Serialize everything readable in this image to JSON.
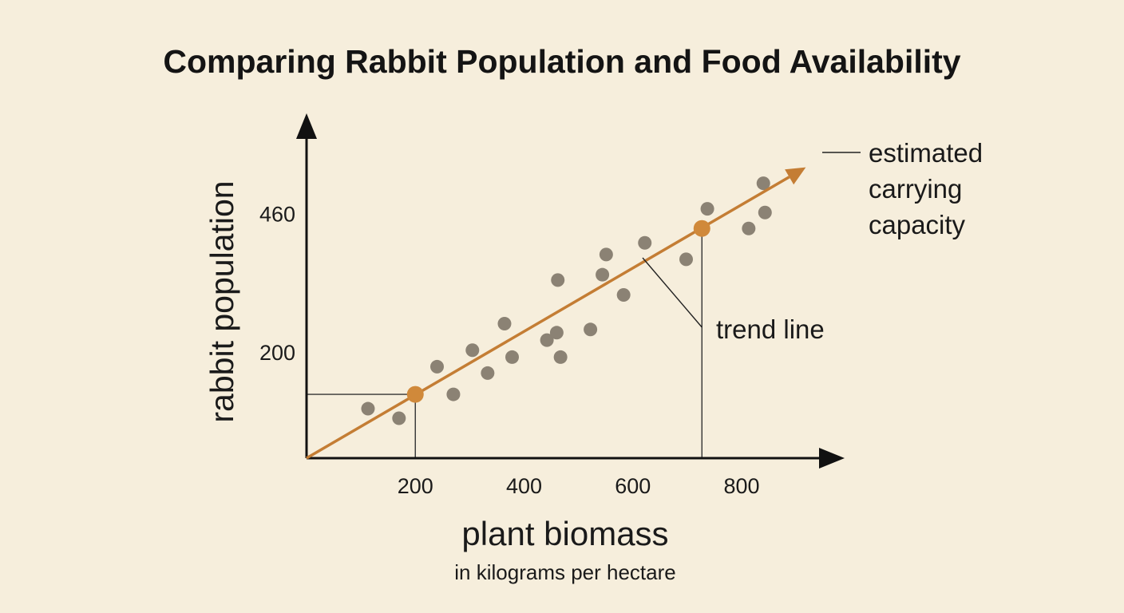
{
  "chart_data": {
    "type": "scatter",
    "title": "Comparing Rabbit Population and Food Availability",
    "ylabel": "rabbit population",
    "xlabel": "plant biomass",
    "xlabel_sub": "in kilograms per hectare",
    "x_ticks": [
      200,
      400,
      600,
      800
    ],
    "y_ticks": [
      200,
      460
    ],
    "xlim": [
      0,
      960
    ],
    "ylim": [
      0,
      620
    ],
    "grid": false,
    "colors": {
      "points": "#8b8274",
      "trend": "#c47d34",
      "highlight": "#d0893a",
      "axis": "#111111",
      "background": "#f6eedc"
    },
    "series": [
      {
        "values": [
          {
            "x": 113,
            "y": 93
          },
          {
            "x": 170,
            "y": 75
          },
          {
            "x": 240,
            "y": 172
          },
          {
            "x": 270,
            "y": 120
          },
          {
            "x": 305,
            "y": 203
          },
          {
            "x": 333,
            "y": 160
          },
          {
            "x": 364,
            "y": 253
          },
          {
            "x": 378,
            "y": 190
          },
          {
            "x": 442,
            "y": 222
          },
          {
            "x": 460,
            "y": 236
          },
          {
            "x": 467,
            "y": 190
          },
          {
            "x": 462,
            "y": 335
          },
          {
            "x": 522,
            "y": 242
          },
          {
            "x": 544,
            "y": 345
          },
          {
            "x": 551,
            "y": 383
          },
          {
            "x": 583,
            "y": 307
          },
          {
            "x": 622,
            "y": 405
          },
          {
            "x": 698,
            "y": 374
          },
          {
            "x": 737,
            "y": 469
          },
          {
            "x": 813,
            "y": 432
          },
          {
            "x": 840,
            "y": 517
          },
          {
            "x": 843,
            "y": 462
          }
        ]
      }
    ],
    "trend_line": {
      "from": {
        "x": 0,
        "y": 0
      },
      "to": {
        "x": 918,
        "y": 547
      }
    },
    "highlights": [
      {
        "x": 200,
        "y": 120
      },
      {
        "x": 727,
        "y": 432
      }
    ],
    "annotations": {
      "trend_line": "trend line",
      "carrying_capacity": [
        "estimated",
        "carrying",
        "capacity"
      ]
    }
  }
}
